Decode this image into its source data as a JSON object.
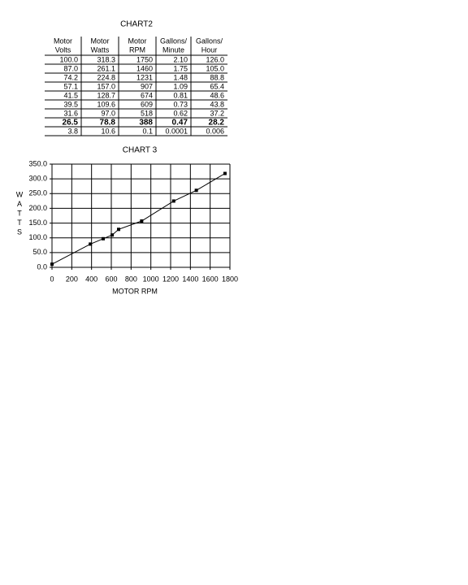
{
  "table": {
    "title": "CHART2",
    "header": [
      [
        "Motor",
        "Volts"
      ],
      [
        "Motor",
        "Watts"
      ],
      [
        "Motor",
        "RPM"
      ],
      [
        "Gallons/",
        "Minute"
      ],
      [
        "Gallons/",
        "Hour"
      ]
    ],
    "rows": [
      [
        "100.0",
        "318.3",
        "1750",
        "2.10",
        "126.0"
      ],
      [
        "87.0",
        "261.1",
        "1460",
        "1.75",
        "105.0"
      ],
      [
        "74.2",
        "224.8",
        "1231",
        "1.48",
        "88.8"
      ],
      [
        "57.1",
        "157.0",
        "907",
        "1.09",
        "65.4"
      ],
      [
        "41.5",
        "128.7",
        "674",
        "0.81",
        "48.6"
      ],
      [
        "39.5",
        "109.6",
        "609",
        "0.73",
        "43.8"
      ],
      [
        "31.6",
        "97.0",
        "518",
        "0.62",
        "37.2"
      ],
      [
        "26.5",
        "78.8",
        "388",
        "0.47",
        "28.2"
      ],
      [
        "3.8",
        "10.6",
        "0.1",
        "0.0001",
        "0.006"
      ]
    ],
    "bold_row": 7
  },
  "chart_data": {
    "type": "line",
    "title": "CHART 3",
    "xlabel": "MOTOR RPM",
    "ylabel": [
      "W",
      "A",
      "T",
      "T",
      "S"
    ],
    "x": [
      0.1,
      388,
      518,
      609,
      674,
      907,
      1231,
      1460,
      1750
    ],
    "values": [
      10.6,
      78.8,
      97.0,
      109.6,
      128.7,
      157.0,
      224.8,
      261.1,
      318.3
    ],
    "color": "#000000",
    "grid": true,
    "xlim": [
      0,
      1800
    ],
    "xticks": [
      0,
      200,
      400,
      600,
      800,
      1000,
      1200,
      1400,
      1600,
      1800
    ],
    "ylim": [
      0,
      350
    ],
    "yticks": [
      {
        "value": 0,
        "label": "0.0"
      },
      {
        "value": 50,
        "label": "50.0"
      },
      {
        "value": 100,
        "label": "100.0"
      },
      {
        "value": 150,
        "label": "150.0"
      },
      {
        "value": 200,
        "label": "200.0"
      },
      {
        "value": 250,
        "label": "250.0"
      },
      {
        "value": 300,
        "label": "300.0"
      },
      {
        "value": 350,
        "label": "350.0"
      }
    ]
  }
}
